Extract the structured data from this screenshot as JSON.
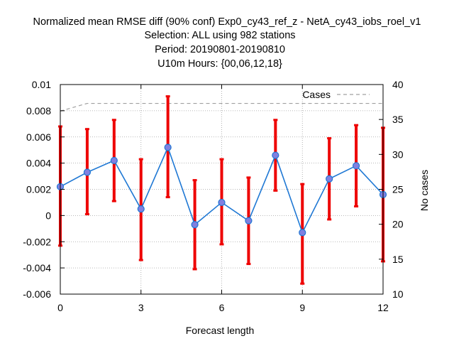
{
  "chart_data": {
    "type": "line",
    "title_lines": [
      "Normalized mean RMSE diff (90% conf) Exp0_cy43_ref_z - NetA_cy43_iobs_roel_v1",
      "Selection: ALL using   982 stations",
      "Period: 20190801-20190810",
      "U10m   Hours: {00,06,12,18}"
    ],
    "xlabel": "Forecast length",
    "ylabel": "",
    "y2label": "No cases",
    "xlim": [
      0,
      12
    ],
    "ylim": [
      -0.006,
      0.01
    ],
    "y2lim": [
      10,
      40
    ],
    "x_ticks": [
      "0",
      "3",
      "6",
      "9",
      "12"
    ],
    "x_tick_values": [
      0,
      3,
      6,
      9,
      12
    ],
    "y_ticks": [
      "-0.006",
      "-0.004",
      "-0.002",
      "0",
      "0.002",
      "0.004",
      "0.006",
      "0.008",
      "0.01"
    ],
    "y_tick_values": [
      -0.006,
      -0.004,
      -0.002,
      0,
      0.002,
      0.004,
      0.006,
      0.008,
      0.01
    ],
    "y2_ticks": [
      "10",
      "15",
      "20",
      "25",
      "30",
      "35",
      "40"
    ],
    "y2_tick_values": [
      10,
      15,
      20,
      25,
      30,
      35,
      40
    ],
    "grid": true,
    "legend_position": "top-right",
    "series": [
      {
        "role": "diff",
        "color": "#1f78d4",
        "marker_color": "#8080e0",
        "error_color": "#ee0000",
        "x": [
          0,
          1,
          2,
          3,
          4,
          5,
          6,
          7,
          8,
          9,
          10,
          11,
          12
        ],
        "values": [
          0.0022,
          0.0033,
          0.0042,
          0.0005,
          0.0052,
          -0.0007,
          0.001,
          -0.0004,
          0.0046,
          -0.0013,
          0.0028,
          0.0038,
          0.0016
        ],
        "err_low": [
          -0.0023,
          0.0001,
          0.0011,
          -0.0034,
          0.0014,
          -0.0041,
          -0.0022,
          -0.0037,
          0.0019,
          -0.0052,
          -0.0003,
          0.0007,
          -0.0035
        ],
        "err_high": [
          0.0068,
          0.0066,
          0.0073,
          0.0043,
          0.0091,
          0.0027,
          0.0043,
          0.0029,
          0.0073,
          0.0024,
          0.0059,
          0.0069,
          0.0067
        ]
      },
      {
        "name": "Cases",
        "role": "cases",
        "axis": "right",
        "color": "#a0a0a0",
        "x": [
          0,
          1,
          2,
          3,
          4,
          5,
          6,
          7,
          8,
          9,
          10,
          11,
          12
        ],
        "values": [
          36.2,
          37.3,
          37.3,
          37.3,
          37.3,
          37.3,
          37.3,
          37.3,
          37.3,
          37.3,
          37.3,
          37.3,
          37.3
        ]
      }
    ]
  }
}
